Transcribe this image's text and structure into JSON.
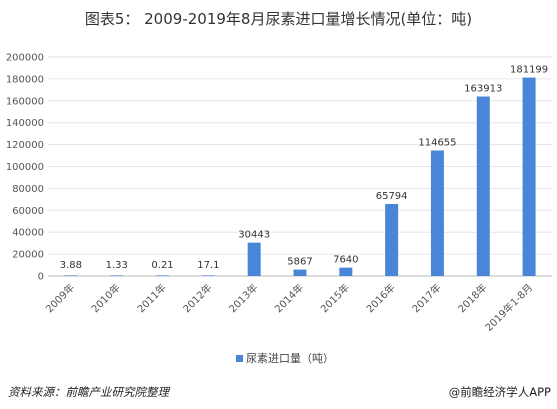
{
  "title": "图表5： 2009-2019年8月尿素进口量增长情况(单位：吨)",
  "source": "资料来源：前瞻产业研究院整理",
  "brand": "@前瞻经济学人APP",
  "chart_data": {
    "type": "bar",
    "title": "图表5： 2009-2019年8月尿素进口量增长情况(单位：吨)",
    "categories": [
      "2009年",
      "2010年",
      "2011年",
      "2012年",
      "2013年",
      "2014年",
      "2015年",
      "2016年",
      "2017年",
      "2018年",
      "2019年1-8月"
    ],
    "series": [
      {
        "name": "尿素进口量（吨）",
        "values": [
          3.88,
          1.33,
          0.21,
          17.1,
          30443,
          5867,
          7640,
          65794,
          114655,
          163913,
          181199
        ],
        "labels": [
          "3.88",
          "1.33",
          "0.21",
          "17.1",
          "30443",
          "5867",
          "7640",
          "65794",
          "114655",
          "163913",
          "181199"
        ]
      }
    ],
    "yticks": [
      "0",
      "20000",
      "40000",
      "60000",
      "80000",
      "100000",
      "120000",
      "140000",
      "160000",
      "180000",
      "200000"
    ],
    "ylim": [
      0,
      200000
    ],
    "grid": true,
    "legend": "bottom",
    "bar_color": "#4a86d8"
  }
}
